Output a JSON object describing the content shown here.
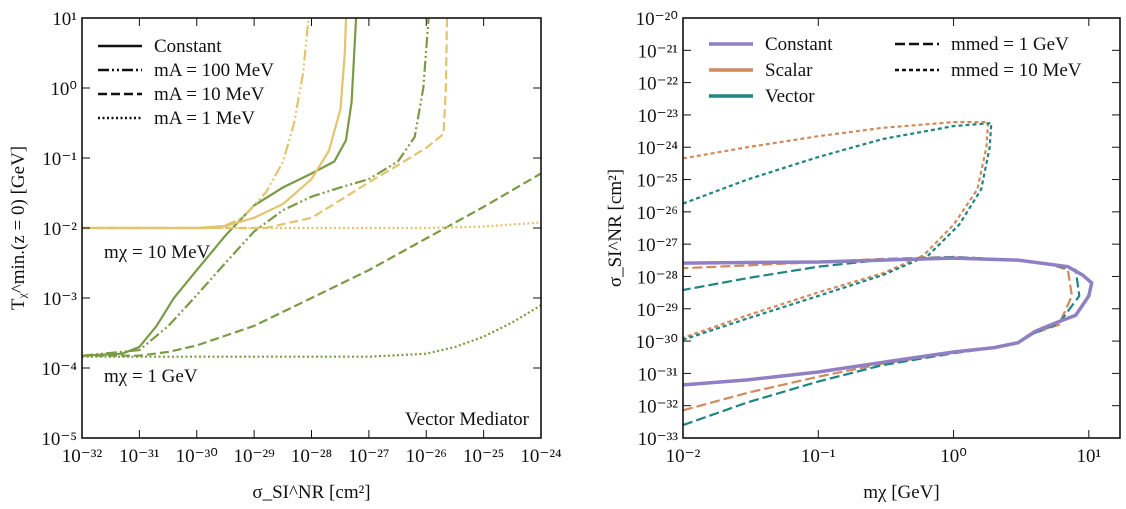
{
  "chart_data": [
    {
      "type": "line",
      "log_x": true,
      "log_y": true,
      "x_label": "σ_SI^NR [cm²]",
      "y_label": "Tᵪ^min.(z = 0) [GeV]",
      "xlim": [
        1e-32,
        1e-24
      ],
      "xticks": [
        {
          "value": 1e-32,
          "label": "10⁻³²"
        },
        {
          "value": 1e-31,
          "label": "10⁻³¹"
        },
        {
          "value": 1e-30,
          "label": "10⁻³⁰"
        },
        {
          "value": 1e-29,
          "label": "10⁻²⁹"
        },
        {
          "value": 1e-28,
          "label": "10⁻²⁸"
        },
        {
          "value": 1e-27,
          "label": "10⁻²⁷"
        },
        {
          "value": 1e-26,
          "label": "10⁻²⁶"
        },
        {
          "value": 1e-25,
          "label": "10⁻²⁵"
        },
        {
          "value": 1e-24,
          "label": "10⁻²⁴"
        }
      ],
      "ylim": [
        1e-05,
        10
      ],
      "yticks": [
        {
          "value": 1e-05,
          "label": "10⁻⁵"
        },
        {
          "value": 0.0001,
          "label": "10⁻⁴"
        },
        {
          "value": 0.001,
          "label": "10⁻³"
        },
        {
          "value": 0.01,
          "label": "10⁻²"
        },
        {
          "value": 0.1,
          "label": "10⁻¹"
        },
        {
          "value": 1,
          "label": "10⁰"
        },
        {
          "value": 10,
          "label": "10¹"
        }
      ],
      "legend": [
        {
          "label": "Constant",
          "dash": "solid"
        },
        {
          "label": "mA = 100 MeV",
          "dash": "dashdot"
        },
        {
          "label": "mA = 10 MeV",
          "dash": "dashed"
        },
        {
          "label": "mA = 1 MeV",
          "dash": "dotted"
        }
      ],
      "annotations": [
        {
          "text": "mχ = 10 MeV",
          "color": "#e3c46e"
        },
        {
          "text": "mχ = 1 GeV",
          "color": "#7b9a45"
        },
        {
          "text": "Vector Mediator",
          "color": "#111111"
        }
      ],
      "series": [
        {
          "color": "#7b9a45",
          "dash": "solid",
          "x": [
            1e-32,
            5e-32,
            1e-31,
            2e-31,
            4e-31,
            1e-30,
            3.2e-30,
            1e-29,
            3.2e-29,
            1e-28,
            2.5e-28,
            4e-28,
            5e-28,
            6e-28
          ],
          "values": [
            0.00015,
            0.00016,
            0.0002,
            0.0004,
            0.001,
            0.0025,
            0.0079,
            0.021,
            0.038,
            0.06,
            0.089,
            0.18,
            0.63,
            10
          ]
        },
        {
          "color": "#7b9a45",
          "dash": "dashdot",
          "x": [
            1e-32,
            1e-31,
            3.2e-31,
            1e-30,
            3.2e-30,
            1e-29,
            3.2e-29,
            1e-28,
            3.2e-28,
            1e-27,
            3.2e-27,
            6.3e-27,
            8.9e-27,
            1.1e-26
          ],
          "values": [
            0.00015,
            0.00018,
            0.0004,
            0.0011,
            0.0032,
            0.0089,
            0.018,
            0.028,
            0.038,
            0.05,
            0.089,
            0.2,
            1,
            10
          ]
        },
        {
          "color": "#7b9a45",
          "dash": "dashed",
          "x": [
            1e-32,
            1e-31,
            3.2e-31,
            1e-30,
            1e-29,
            1e-28,
            1e-27,
            1e-26,
            1e-25,
            1e-24
          ],
          "values": [
            0.00015,
            0.00015,
            0.00017,
            0.00021,
            0.0004,
            0.001,
            0.0025,
            0.0071,
            0.02,
            0.06
          ]
        },
        {
          "color": "#7b9a45",
          "dash": "dotted",
          "x": [
            1e-32,
            1e-27,
            1e-26,
            3.2e-26,
            1e-25,
            3.2e-25,
            1e-24
          ],
          "values": [
            0.000145,
            0.000145,
            0.00016,
            0.0002,
            0.00028,
            0.00045,
            0.00079
          ]
        },
        {
          "color": "#e3c46e",
          "dash": "solid",
          "x": [
            1e-32,
            1e-30,
            3.2e-30,
            1e-29,
            3.2e-29,
            1e-28,
            2e-28,
            3.2e-28,
            3.8e-28,
            4e-28
          ],
          "values": [
            0.01,
            0.01,
            0.0107,
            0.014,
            0.022,
            0.05,
            0.126,
            0.5,
            3.2,
            10
          ]
        },
        {
          "color": "#e3c46e",
          "dash": "dashdot",
          "x": [
            1e-32,
            2.5e-30,
            6.3e-30,
            1.6e-29,
            3.2e-29,
            5e-29,
            7.1e-29,
            8.9e-29
          ],
          "values": [
            0.01,
            0.01,
            0.014,
            0.032,
            0.089,
            0.32,
            1.6,
            10
          ]
        },
        {
          "color": "#e3c46e",
          "dash": "dashed",
          "x": [
            1e-32,
            1.6e-29,
            1e-28,
            3.2e-28,
            1e-27,
            3.2e-27,
            1e-26,
            2e-26,
            2.2e-26,
            2.3e-26
          ],
          "values": [
            0.01,
            0.01,
            0.014,
            0.025,
            0.045,
            0.079,
            0.14,
            0.22,
            1,
            10
          ]
        },
        {
          "color": "#e3c46e",
          "dash": "dotted",
          "x": [
            1e-32,
            1e-26,
            1e-25,
            1e-24
          ],
          "values": [
            0.01,
            0.01,
            0.0105,
            0.012
          ]
        }
      ]
    },
    {
      "type": "line",
      "log_x": true,
      "log_y": true,
      "x_label": "mχ [GeV]",
      "y_label": "σ_SI^NR [cm²]",
      "xlim": [
        0.01,
        17
      ],
      "xticks": [
        {
          "value": 0.01,
          "label": "10⁻²"
        },
        {
          "value": 0.1,
          "label": "10⁻¹"
        },
        {
          "value": 1,
          "label": "10⁰"
        },
        {
          "value": 10,
          "label": "10¹"
        }
      ],
      "ylim": [
        1e-33,
        1e-20
      ],
      "yticks": [
        {
          "value": 1e-33,
          "label": "10⁻³³"
        },
        {
          "value": 1e-32,
          "label": "10⁻³²"
        },
        {
          "value": 1e-31,
          "label": "10⁻³¹"
        },
        {
          "value": 1e-30,
          "label": "10⁻³⁰"
        },
        {
          "value": 1e-29,
          "label": "10⁻²⁹"
        },
        {
          "value": 1e-28,
          "label": "10⁻²⁸"
        },
        {
          "value": 1e-27,
          "label": "10⁻²⁷"
        },
        {
          "value": 1e-26,
          "label": "10⁻²⁶"
        },
        {
          "value": 1e-25,
          "label": "10⁻²⁵"
        },
        {
          "value": 1e-24,
          "label": "10⁻²⁴"
        },
        {
          "value": 1e-23,
          "label": "10⁻²³"
        },
        {
          "value": 1e-22,
          "label": "10⁻²²"
        },
        {
          "value": 1e-21,
          "label": "10⁻²¹"
        },
        {
          "value": 1e-20,
          "label": "10⁻²⁰"
        }
      ],
      "legend": [
        {
          "label": "Constant",
          "color": "#8f80c4"
        },
        {
          "label": "Scalar",
          "color": "#d08a5c"
        },
        {
          "label": "Vector",
          "color": "#1f8580"
        },
        {
          "label": "mmed = 1 GeV",
          "dash": "long"
        },
        {
          "label": "mmed = 10 MeV",
          "dash": "short"
        }
      ],
      "series": [
        {
          "color": "#d08a5c",
          "dash": "short",
          "x": [
            0.01,
            0.03,
            0.1,
            0.3,
            1,
            1.8,
            1.75,
            1.5,
            1.0,
            0.6,
            0.3,
            0.1,
            0.03,
            0.01
          ],
          "values": [
            4.5e-25,
            1e-24,
            2.2e-24,
            4e-24,
            6e-24,
            6e-24,
            1e-24,
            5e-26,
            4e-27,
            4.5e-28,
            1.26e-28,
            3.2e-29,
            6.3e-30,
            1.26e-30
          ]
        },
        {
          "color": "#1f8580",
          "dash": "short",
          "x": [
            0.01,
            0.03,
            0.1,
            0.3,
            1,
            1.9,
            1.85,
            1.6,
            1.1,
            0.65,
            0.3,
            0.1,
            0.03,
            0.01
          ],
          "values": [
            1.8e-26,
            1e-25,
            5e-25,
            1.8e-24,
            4.5e-24,
            5.6e-24,
            1e-24,
            5e-26,
            4e-27,
            4.5e-28,
            1.1e-28,
            2.5e-29,
            5e-30,
            1.1e-30
          ]
        },
        {
          "color": "#d08a5c",
          "dash": "long",
          "x": [
            0.01,
            0.03,
            0.1,
            0.3,
            1,
            2,
            3,
            4,
            6,
            7.5,
            7,
            5,
            3,
            1,
            0.3,
            0.1,
            0.03,
            0.01
          ],
          "values": [
            7.2e-33,
            2.5e-32,
            7.9e-32,
            2e-31,
            4.4e-31,
            6.3e-31,
            8.9e-31,
            1.8e-30,
            3.2e-30,
            2.5e-29,
            1.6e-28,
            2.5e-28,
            3.2e-28,
            4e-28,
            3.5e-28,
            2.8e-28,
            2.2e-28,
            1.8e-28
          ]
        },
        {
          "color": "#1f8580",
          "dash": "long",
          "x": [
            0.01,
            0.03,
            0.1,
            0.3,
            1,
            2,
            3,
            4,
            6,
            8.5,
            8,
            5,
            3,
            1,
            0.3,
            0.1,
            0.03,
            0.01
          ],
          "values": [
            2.5e-33,
            1.26e-32,
            5.6e-32,
            1.8e-31,
            4.2e-31,
            6.3e-31,
            8.9e-31,
            1.8e-30,
            3.5e-30,
            2.5e-29,
            1.6e-28,
            2.4e-28,
            3.2e-28,
            4e-28,
            3.3e-28,
            2e-28,
            8.9e-29,
            3.8e-29
          ]
        },
        {
          "color": "#8f80c4",
          "dash": "solid",
          "width": 3.5,
          "x": [
            0.01,
            0.03,
            0.1,
            0.3,
            1,
            2,
            3,
            4,
            6,
            8,
            10,
            10.5,
            9,
            7,
            3,
            1,
            0.3,
            0.1,
            0.03,
            0.01
          ],
          "values": [
            4.4e-32,
            6.3e-32,
            1.1e-31,
            2.2e-31,
            4.6e-31,
            6.3e-31,
            8.9e-31,
            2e-30,
            4e-30,
            6.3e-30,
            2.5e-29,
            6.3e-29,
            1.1e-28,
            2e-28,
            3.2e-28,
            3.7e-28,
            3.2e-28,
            2.8e-28,
            2.7e-28,
            2.6e-28
          ]
        }
      ]
    }
  ]
}
